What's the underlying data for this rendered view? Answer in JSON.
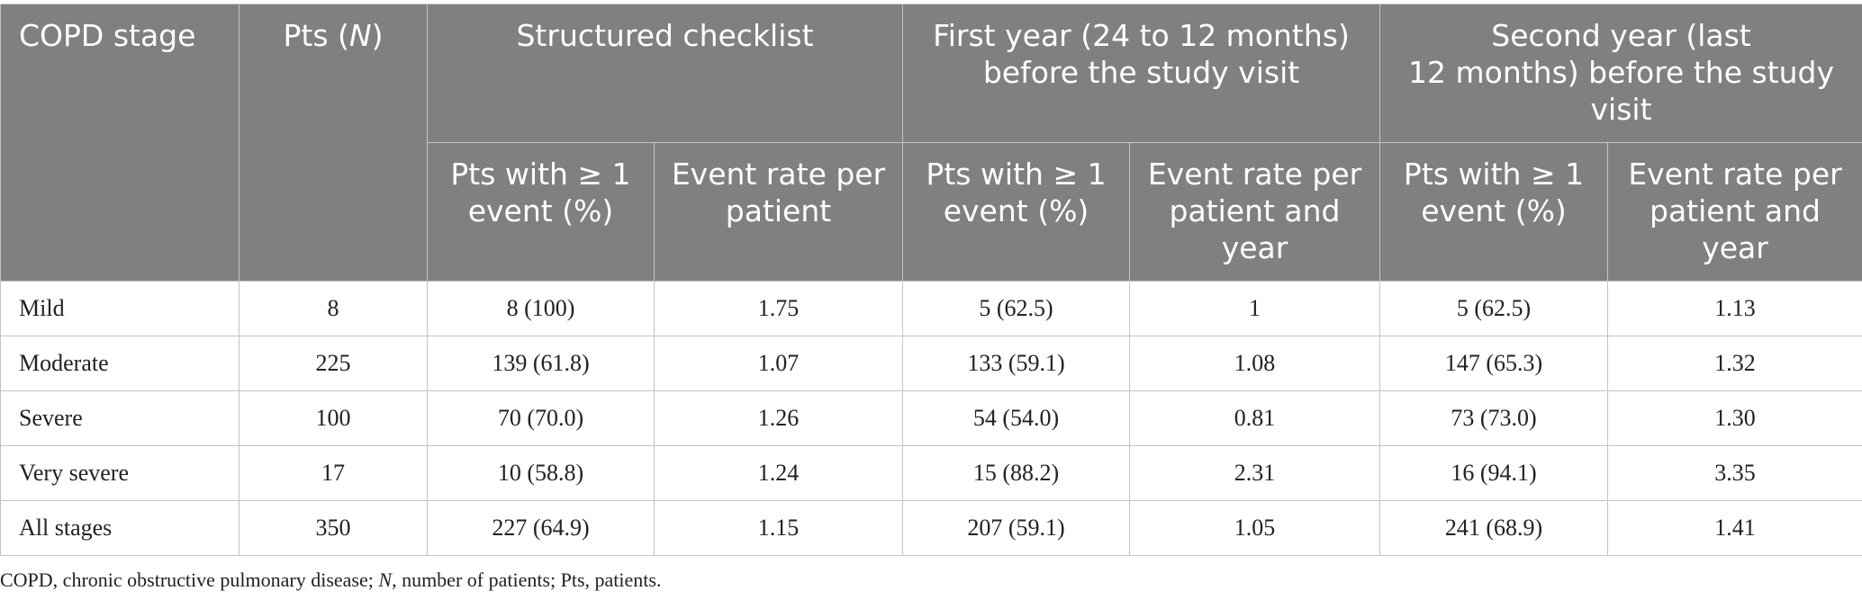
{
  "header": {
    "stage": "COPD stage",
    "pts_prefix": "Pts (",
    "pts_n": "N",
    "pts_suffix": ")",
    "group_checklist": "Structured checklist",
    "group_first_year": "First year (24 to 12 months) before the study visit",
    "group_second_year_l1": "Second year (last",
    "group_second_year_l2": "12 months) before the study visit",
    "sub": [
      "Pts with ≥ 1 event (%)",
      "Event rate per patient",
      "Pts with ≥ 1 event (%)",
      "Event rate per patient and year",
      "Pts with ≥ 1 event (%)",
      "Event rate per patient and year"
    ]
  },
  "rows": [
    [
      "Mild",
      "8",
      "8 (100)",
      "1.75",
      "5 (62.5)",
      "1",
      "5 (62.5)",
      "1.13"
    ],
    [
      "Moderate",
      "225",
      "139 (61.8)",
      "1.07",
      "133 (59.1)",
      "1.08",
      "147 (65.3)",
      "1.32"
    ],
    [
      "Severe",
      "100",
      "70 (70.0)",
      "1.26",
      "54 (54.0)",
      "0.81",
      "73 (73.0)",
      "1.30"
    ],
    [
      "Very severe",
      "17",
      "10 (58.8)",
      "1.24",
      "15 (88.2)",
      "2.31",
      "16 (94.1)",
      "3.35"
    ],
    [
      "All stages",
      "350",
      "227 (64.9)",
      "1.15",
      "207 (59.1)",
      "1.05",
      "241 (68.9)",
      "1.41"
    ]
  ],
  "footnote": {
    "part1": "COPD, chronic obstructive pulmonary disease; ",
    "n": "N",
    "part2": ", number of patients; Pts, patients."
  }
}
